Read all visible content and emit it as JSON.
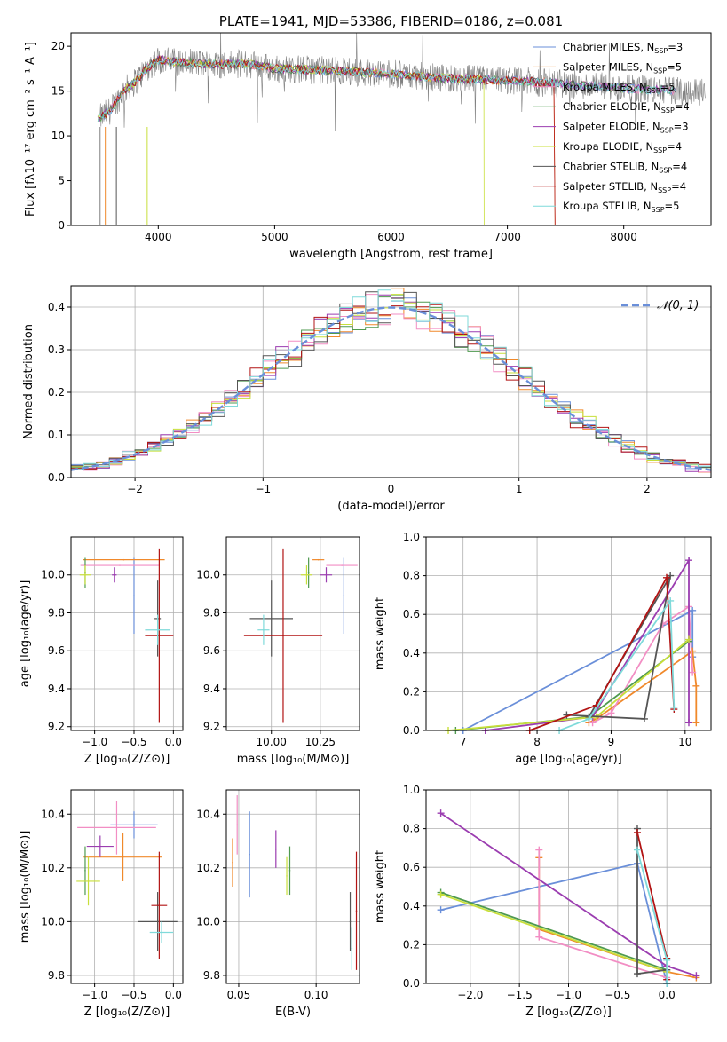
{
  "chart_data": [
    {
      "type": "line",
      "title": "PLATE=1941, MJD=53386, FIBERID=0186, z=0.081",
      "xlabel": "wavelength [Angstrom, rest frame]",
      "ylabel": "Flux [fλ10⁻¹⁷ erg cm⁻² s⁻¹ A⁻¹]",
      "xlim": [
        3250,
        8750
      ],
      "ylim": [
        0,
        21.5
      ],
      "xticks": [
        "4000",
        "5000",
        "6000",
        "7000",
        "8000"
      ],
      "yticks": [
        "0",
        "5",
        "10",
        "15",
        "20"
      ],
      "legend_position": "right",
      "series": [
        {
          "name": "Chabrier MILES, N_SSP=3",
          "color": "#6a8fd9"
        },
        {
          "name": "Salpeter MILES, N_SSP=5",
          "color": "#f0892b"
        },
        {
          "name": "Kroupa MILES, N_SSP=5",
          "color": "#f28ec4"
        },
        {
          "name": "Chabrier ELODIE, N_SSP=4",
          "color": "#4f9a4f"
        },
        {
          "name": "Salpeter ELODIE, N_SSP=3",
          "color": "#9b3db0"
        },
        {
          "name": "Kroupa ELODIE, N_SSP=4",
          "color": "#c8df3a"
        },
        {
          "name": "Chabrier STELIB, N_SSP=4",
          "color": "#555555"
        },
        {
          "name": "Salpeter STELIB, N_SSP=4",
          "color": "#b21414"
        },
        {
          "name": "Kroupa STELIB, N_SSP=5",
          "color": "#7fdada"
        }
      ],
      "continuum_points": [
        [
          3500,
          12
        ],
        [
          3600,
          13
        ],
        [
          3700,
          15
        ],
        [
          3800,
          16
        ],
        [
          3900,
          17.5
        ],
        [
          4000,
          18.5
        ],
        [
          4200,
          18.2
        ],
        [
          4500,
          18
        ],
        [
          4800,
          18
        ],
        [
          5000,
          17.5
        ],
        [
          5500,
          17.3
        ],
        [
          6000,
          16.9
        ],
        [
          6500,
          16.4
        ],
        [
          7000,
          16.2
        ],
        [
          7500,
          15.8
        ],
        [
          8000,
          15.3
        ],
        [
          8500,
          15
        ]
      ]
    },
    {
      "type": "histogram",
      "xlabel": "(data-model)/error",
      "ylabel": "Normed distribution",
      "xlim": [
        -2.5,
        2.5
      ],
      "ylim": [
        0,
        0.45
      ],
      "xticks": [
        "−2",
        "−1",
        "0",
        "1",
        "2"
      ],
      "yticks": [
        "0.0",
        "0.1",
        "0.2",
        "0.3",
        "0.4"
      ],
      "reference": {
        "name": "𝒩(0, 1)",
        "color": "#6a8fd9"
      },
      "bins": 50
    },
    {
      "type": "scatter",
      "xlabel": "Z [log₁₀(Z/Z⊙)]",
      "ylabel": "age  [log₁₀(age/yr)]",
      "xlim": [
        -1.3,
        0.12
      ],
      "ylim": [
        9.18,
        10.2
      ],
      "xticks": [
        "−1.0",
        "−0.5",
        "0.0"
      ],
      "yticks": [
        "9.2",
        "9.4",
        "9.6",
        "9.8",
        "10.0"
      ],
      "points": [
        {
          "x": -0.5,
          "y": 9.89,
          "xerr": 0,
          "yerr": 0.2,
          "color": "#6a8fd9"
        },
        {
          "x": -0.63,
          "y": 10.08,
          "xerr": 0.52,
          "yerr": 0,
          "color": "#f0892b"
        },
        {
          "x": -0.68,
          "y": 10.05,
          "xerr": 0.5,
          "yerr": 0,
          "color": "#f28ec4"
        },
        {
          "x": -1.12,
          "y": 10.01,
          "xerr": 0,
          "yerr": 0.08,
          "color": "#4f9a4f"
        },
        {
          "x": -0.75,
          "y": 10.0,
          "xerr": 0.03,
          "yerr": 0.04,
          "color": "#9b3db0"
        },
        {
          "x": -1.12,
          "y": 10.0,
          "xerr": 0.07,
          "yerr": 0.05,
          "color": "#c8df3a"
        },
        {
          "x": -0.2,
          "y": 9.77,
          "xerr": 0.04,
          "yerr": 0.2,
          "color": "#555555"
        },
        {
          "x": -0.18,
          "y": 9.68,
          "xerr": 0.18,
          "yerr": 0.46,
          "color": "#b21414"
        },
        {
          "x": -0.2,
          "y": 9.71,
          "xerr": 0.16,
          "yerr": 0.08,
          "color": "#7fdada"
        }
      ]
    },
    {
      "type": "scatter",
      "xlabel": "mass [log₁₀(M/M⊙)]",
      "ylabel": "",
      "xlim": [
        9.77,
        10.45
      ],
      "ylim": [
        9.18,
        10.2
      ],
      "xticks": [
        "10.00",
        "10.25"
      ],
      "yticks": [
        "9.2",
        "9.4",
        "9.6",
        "9.8",
        "10.0"
      ],
      "points": [
        {
          "x": 10.37,
          "y": 9.89,
          "xerr": 0,
          "yerr": 0.2,
          "color": "#6a8fd9"
        },
        {
          "x": 10.24,
          "y": 10.08,
          "xerr": 0.03,
          "yerr": 0,
          "color": "#f0892b"
        },
        {
          "x": 10.36,
          "y": 10.05,
          "xerr": 0.08,
          "yerr": 0,
          "color": "#f28ec4"
        },
        {
          "x": 10.19,
          "y": 10.01,
          "xerr": 0,
          "yerr": 0.08,
          "color": "#4f9a4f"
        },
        {
          "x": 10.28,
          "y": 10.0,
          "xerr": 0.03,
          "yerr": 0.04,
          "color": "#9b3db0"
        },
        {
          "x": 10.18,
          "y": 10.0,
          "xerr": 0.03,
          "yerr": 0.05,
          "color": "#c8df3a"
        },
        {
          "x": 10.0,
          "y": 9.77,
          "xerr": 0.11,
          "yerr": 0.2,
          "color": "#555555"
        },
        {
          "x": 10.06,
          "y": 9.68,
          "xerr": 0.2,
          "yerr": 0.46,
          "color": "#b21414"
        },
        {
          "x": 9.96,
          "y": 9.71,
          "xerr": 0.03,
          "yerr": 0.08,
          "color": "#7fdada"
        }
      ]
    },
    {
      "type": "line",
      "xlabel": "age  [log₁₀(age/yr)]",
      "ylabel": "mass weight",
      "xlim": [
        6.5,
        10.35
      ],
      "ylim": [
        0,
        1
      ],
      "xticks": [
        "7",
        "8",
        "9",
        "10"
      ],
      "yticks": [
        "0.0",
        "0.2",
        "0.4",
        "0.6",
        "0.8",
        "1.0"
      ],
      "series": [
        {
          "color": "#6a8fd9",
          "points": [
            [
              7.0,
              0.0
            ],
            [
              10.1,
              0.62
            ],
            [
              10.1,
              0.38
            ]
          ]
        },
        {
          "color": "#f0892b",
          "points": [
            [
              8.7,
              0.04
            ],
            [
              8.8,
              0.06
            ],
            [
              10.1,
              0.41
            ],
            [
              10.15,
              0.23
            ],
            [
              10.15,
              0.04
            ]
          ]
        },
        {
          "color": "#f28ec4",
          "points": [
            [
              8.75,
              0.04
            ],
            [
              9.0,
              0.09
            ],
            [
              9.7,
              0.55
            ],
            [
              10.05,
              0.64
            ],
            [
              10.1,
              0.3
            ]
          ]
        },
        {
          "color": "#4f9a4f",
          "points": [
            [
              6.9,
              0.0
            ],
            [
              8.7,
              0.07
            ],
            [
              10.05,
              0.46
            ]
          ]
        },
        {
          "color": "#9b3db0",
          "points": [
            [
              7.3,
              0.0
            ],
            [
              8.75,
              0.07
            ],
            [
              10.05,
              0.88
            ],
            [
              10.05,
              0.04
            ]
          ]
        },
        {
          "color": "#c8df3a",
          "points": [
            [
              6.8,
              0.0
            ],
            [
              8.8,
              0.07
            ],
            [
              10.05,
              0.47
            ]
          ]
        },
        {
          "color": "#555555",
          "points": [
            [
              8.4,
              0.08
            ],
            [
              9.45,
              0.06
            ],
            [
              9.8,
              0.8
            ],
            [
              8.7,
              0.07
            ]
          ]
        },
        {
          "color": "#b21414",
          "points": [
            [
              7.9,
              0.0
            ],
            [
              8.8,
              0.13
            ],
            [
              9.75,
              0.79
            ],
            [
              9.85,
              0.11
            ]
          ]
        },
        {
          "color": "#7fdada",
          "points": [
            [
              8.3,
              0.0
            ],
            [
              8.7,
              0.06
            ],
            [
              9.8,
              0.67
            ],
            [
              9.85,
              0.12
            ]
          ]
        }
      ]
    },
    {
      "type": "scatter",
      "xlabel": "Z [log₁₀(Z/Z⊙)]",
      "ylabel": "mass [log₁₀(M/M⊙)]",
      "xlim": [
        -1.3,
        0.12
      ],
      "ylim": [
        9.77,
        10.49
      ],
      "xticks": [
        "−1.0",
        "−0.5",
        "0.0"
      ],
      "yticks": [
        "9.8",
        "10.0",
        "10.2",
        "10.4"
      ],
      "points": [
        {
          "x": -0.5,
          "y": 10.36,
          "xerr": 0.3,
          "yerr": 0.05,
          "color": "#6a8fd9"
        },
        {
          "x": -0.64,
          "y": 10.24,
          "xerr": 0.5,
          "yerr": 0.09,
          "color": "#f0892b"
        },
        {
          "x": -0.72,
          "y": 10.35,
          "xerr": 0.5,
          "yerr": 0.1,
          "color": "#f28ec4"
        },
        {
          "x": -1.12,
          "y": 10.19,
          "xerr": 0,
          "yerr": 0.09,
          "color": "#4f9a4f"
        },
        {
          "x": -0.93,
          "y": 10.28,
          "xerr": 0.17,
          "yerr": 0.04,
          "color": "#9b3db0"
        },
        {
          "x": -1.08,
          "y": 10.15,
          "xerr": 0.15,
          "yerr": 0.09,
          "color": "#c8df3a"
        },
        {
          "x": -0.2,
          "y": 10.0,
          "xerr": 0.25,
          "yerr": 0.11,
          "color": "#555555"
        },
        {
          "x": -0.18,
          "y": 10.06,
          "xerr": 0.1,
          "yerr": 0.2,
          "color": "#b21414"
        },
        {
          "x": -0.15,
          "y": 9.96,
          "xerr": 0.15,
          "yerr": 0.04,
          "color": "#7fdada"
        }
      ]
    },
    {
      "type": "scatter",
      "xlabel": "E(B-V)",
      "ylabel": "",
      "xlim": [
        0.042,
        0.128
      ],
      "ylim": [
        9.77,
        10.49
      ],
      "xticks": [
        "0.05",
        "0.10"
      ],
      "yticks": [
        "9.8",
        "10.0",
        "10.2",
        "10.4"
      ],
      "points": [
        {
          "x": 0.057,
          "y": 10.25,
          "xerr": 0,
          "yerr": 0.16,
          "color": "#6a8fd9"
        },
        {
          "x": 0.046,
          "y": 10.22,
          "xerr": 0,
          "yerr": 0.09,
          "color": "#f0892b"
        },
        {
          "x": 0.049,
          "y": 10.36,
          "xerr": 0,
          "yerr": 0.11,
          "color": "#f28ec4"
        },
        {
          "x": 0.083,
          "y": 10.19,
          "xerr": 0,
          "yerr": 0.09,
          "color": "#4f9a4f"
        },
        {
          "x": 0.074,
          "y": 10.27,
          "xerr": 0,
          "yerr": 0.07,
          "color": "#9b3db0"
        },
        {
          "x": 0.081,
          "y": 10.17,
          "xerr": 0,
          "yerr": 0.07,
          "color": "#c8df3a"
        },
        {
          "x": 0.122,
          "y": 10.0,
          "xerr": 0,
          "yerr": 0.11,
          "color": "#555555"
        },
        {
          "x": 0.126,
          "y": 10.04,
          "xerr": 0,
          "yerr": 0.22,
          "color": "#b21414"
        },
        {
          "x": 0.123,
          "y": 9.9,
          "xerr": 0,
          "yerr": 0.08,
          "color": "#7fdada"
        }
      ]
    },
    {
      "type": "line",
      "xlabel": "Z [log₁₀(Z/Z⊙)]",
      "ylabel": "mass weight",
      "xlim": [
        -2.45,
        0.45
      ],
      "ylim": [
        0,
        1
      ],
      "xticks": [
        "−2.0",
        "−1.5",
        "−1.0",
        "−0.5",
        "0.0"
      ],
      "yticks": [
        "0.0",
        "0.2",
        "0.4",
        "0.6",
        "0.8",
        "1.0"
      ],
      "series": [
        {
          "color": "#6a8fd9",
          "points": [
            [
              -2.3,
              0.38
            ],
            [
              -0.3,
              0.62
            ],
            [
              0.0,
              0.0
            ]
          ]
        },
        {
          "color": "#f0892b",
          "points": [
            [
              -1.3,
              0.65
            ],
            [
              -1.3,
              0.28
            ],
            [
              0.0,
              0.06
            ],
            [
              0.3,
              0.03
            ]
          ]
        },
        {
          "color": "#f28ec4",
          "points": [
            [
              -1.3,
              0.69
            ],
            [
              -1.3,
              0.24
            ],
            [
              0.0,
              0.03
            ]
          ]
        },
        {
          "color": "#4f9a4f",
          "points": [
            [
              -2.3,
              0.47
            ],
            [
              0.0,
              0.07
            ]
          ]
        },
        {
          "color": "#9b3db0",
          "points": [
            [
              -2.3,
              0.88
            ],
            [
              0.0,
              0.09
            ],
            [
              0.3,
              0.04
            ]
          ]
        },
        {
          "color": "#c8df3a",
          "points": [
            [
              -2.3,
              0.46
            ],
            [
              0.0,
              0.06
            ]
          ]
        },
        {
          "color": "#555555",
          "points": [
            [
              -0.3,
              0.8
            ],
            [
              -0.3,
              0.05
            ],
            [
              0.0,
              0.07
            ]
          ]
        },
        {
          "color": "#b21414",
          "points": [
            [
              -0.3,
              0.78
            ],
            [
              0.0,
              0.13
            ],
            [
              0.0,
              0.02
            ]
          ]
        },
        {
          "color": "#7fdada",
          "points": [
            [
              -0.3,
              0.69
            ],
            [
              0.0,
              0.12
            ],
            [
              0.0,
              0.0
            ]
          ]
        }
      ]
    }
  ]
}
